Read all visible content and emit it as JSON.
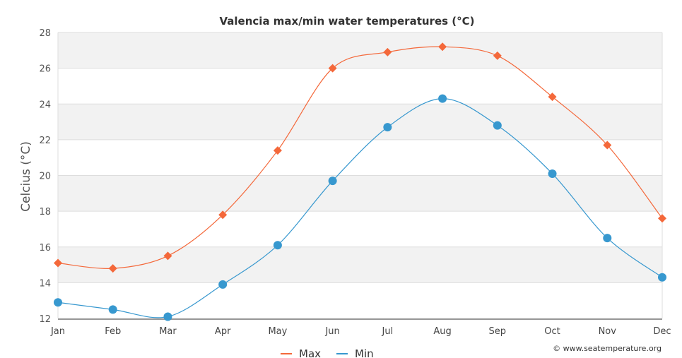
{
  "chart_data": {
    "type": "line",
    "title": "Valencia max/min water temperatures (°C)",
    "xlabel": "",
    "ylabel": "Celcius (°C)",
    "categories": [
      "Jan",
      "Feb",
      "Mar",
      "Apr",
      "May",
      "Jun",
      "Jul",
      "Aug",
      "Sep",
      "Oct",
      "Nov",
      "Dec"
    ],
    "ylim": [
      12,
      28
    ],
    "yticks": [
      12,
      14,
      16,
      18,
      20,
      22,
      24,
      26,
      28
    ],
    "grid": true,
    "legend_position": "bottom-center",
    "series": [
      {
        "name": "Max",
        "color": "#f4683a",
        "marker": "diamond",
        "values": [
          15.1,
          14.8,
          15.5,
          17.8,
          21.4,
          26.0,
          26.9,
          27.2,
          26.7,
          24.4,
          21.7,
          17.6
        ]
      },
      {
        "name": "Min",
        "color": "#3798cf",
        "marker": "circle",
        "values": [
          12.9,
          12.5,
          12.1,
          13.9,
          16.1,
          19.7,
          22.7,
          24.3,
          22.8,
          20.1,
          16.5,
          14.3
        ]
      }
    ]
  },
  "credit": "© www.seatemperature.org"
}
